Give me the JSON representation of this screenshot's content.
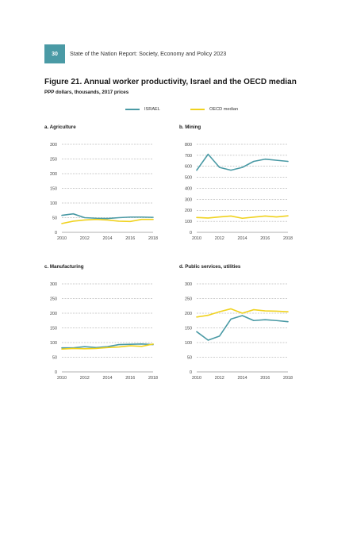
{
  "header": {
    "page_number": "30",
    "report_title": "State of the Nation Report: Society, Economy and Policy 2023"
  },
  "figure": {
    "title": "Figure 21. Annual worker productivity, Israel and the OECD median",
    "subtitle": "PPP dollars, thousands, 2017 prices"
  },
  "legend": [
    {
      "label": "ISRAEL",
      "color": "#4a9aa5"
    },
    {
      "label": "OECD median",
      "color": "#f0d21e"
    }
  ],
  "chart_data": [
    {
      "type": "line",
      "title": "a. Agriculture",
      "x": [
        2010,
        2011,
        2012,
        2013,
        2014,
        2015,
        2016,
        2017,
        2018
      ],
      "x_ticks": [
        "2010",
        "2012",
        "2014",
        "2016",
        "2018"
      ],
      "y_ticks": [
        "0",
        "50",
        "100",
        "150",
        "200",
        "250",
        "300"
      ],
      "ylim": [
        0,
        300
      ],
      "grid": true,
      "series": [
        {
          "name": "ISRAEL",
          "color": "#4a9aa5",
          "values": [
            58,
            63,
            50,
            48,
            47,
            50,
            52,
            52,
            51
          ]
        },
        {
          "name": "OECD median",
          "color": "#f0d21e",
          "values": [
            30,
            38,
            42,
            44,
            42,
            38,
            37,
            44,
            44
          ]
        }
      ]
    },
    {
      "type": "line",
      "title": "b. Mining",
      "x": [
        2010,
        2011,
        2012,
        2013,
        2014,
        2015,
        2016,
        2017,
        2018
      ],
      "x_ticks": [
        "2010",
        "2012",
        "2014",
        "2016",
        "2018"
      ],
      "y_ticks": [
        "0",
        "100",
        "200",
        "300",
        "400",
        "500",
        "600",
        "700",
        "800"
      ],
      "ylim": [
        0,
        800
      ],
      "grid": true,
      "series": [
        {
          "name": "ISRAEL",
          "color": "#4a9aa5",
          "values": [
            565,
            710,
            590,
            565,
            590,
            645,
            665,
            655,
            645
          ]
        },
        {
          "name": "OECD median",
          "color": "#f0d21e",
          "values": [
            135,
            130,
            140,
            148,
            128,
            138,
            148,
            140,
            150
          ]
        }
      ]
    },
    {
      "type": "line",
      "title": "c. Manufacturing",
      "x": [
        2010,
        2011,
        2012,
        2013,
        2014,
        2015,
        2016,
        2017,
        2018
      ],
      "x_ticks": [
        "2010",
        "2012",
        "2014",
        "2016",
        "2018"
      ],
      "y_ticks": [
        "0",
        "50",
        "100",
        "150",
        "200",
        "250",
        "300"
      ],
      "ylim": [
        0,
        300
      ],
      "grid": true,
      "series": [
        {
          "name": "ISRAEL",
          "color": "#4a9aa5",
          "values": [
            82,
            82,
            86,
            83,
            86,
            93,
            94,
            95,
            93
          ]
        },
        {
          "name": "OECD median",
          "color": "#f0d21e",
          "values": [
            78,
            80,
            79,
            80,
            83,
            85,
            89,
            87,
            95
          ]
        }
      ]
    },
    {
      "type": "line",
      "title": "d. Public services, utilities",
      "x": [
        2010,
        2011,
        2012,
        2013,
        2014,
        2015,
        2016,
        2017,
        2018
      ],
      "x_ticks": [
        "2010",
        "2012",
        "2014",
        "2016",
        "2018"
      ],
      "y_ticks": [
        "0",
        "50",
        "100",
        "150",
        "200",
        "250",
        "300"
      ],
      "ylim": [
        0,
        300
      ],
      "grid": true,
      "series": [
        {
          "name": "ISRAEL",
          "color": "#4a9aa5",
          "values": [
            137,
            108,
            122,
            180,
            192,
            175,
            178,
            175,
            171
          ]
        },
        {
          "name": "OECD median",
          "color": "#f0d21e",
          "values": [
            187,
            193,
            205,
            215,
            200,
            212,
            208,
            207,
            205
          ]
        }
      ]
    }
  ]
}
